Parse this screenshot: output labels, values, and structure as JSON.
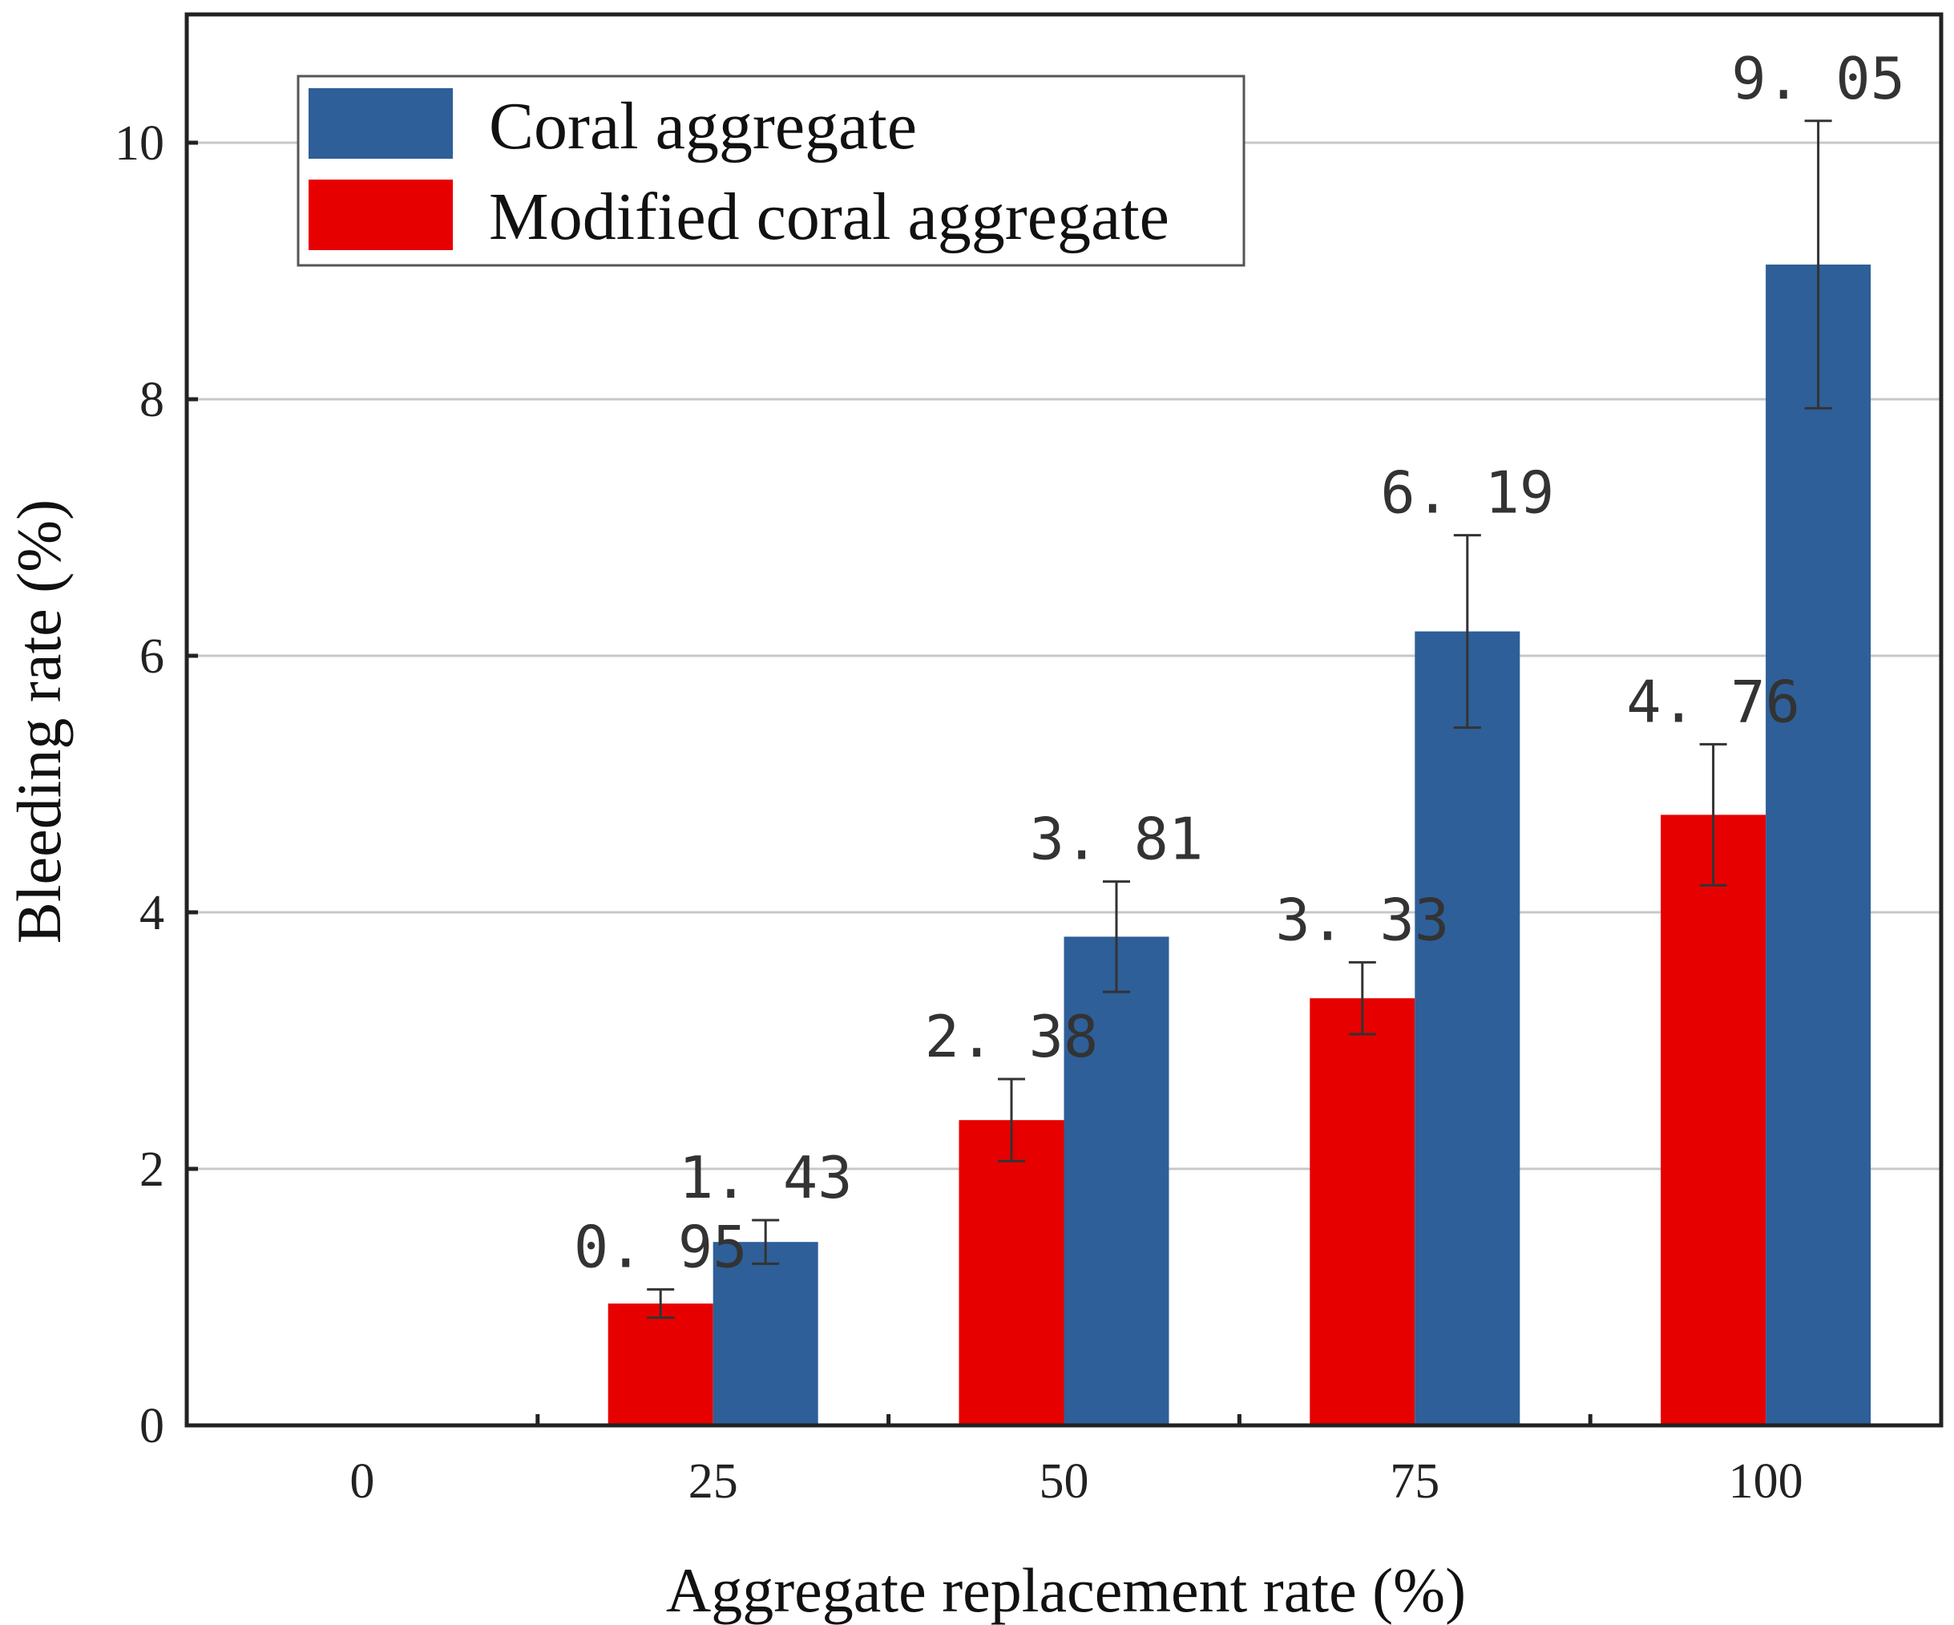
{
  "chart_data": {
    "type": "bar",
    "title": "",
    "xlabel": "Aggregate replacement rate (%)",
    "ylabel": "Bleeding rate (%)",
    "categories": [
      "0",
      "25",
      "50",
      "75",
      "100"
    ],
    "ylim": [
      0,
      11
    ],
    "yticks": [
      0,
      2,
      4,
      6,
      8,
      10
    ],
    "grid": "horizontal",
    "legend_position": "top-left",
    "series": [
      {
        "name": "Modified coral aggregate",
        "color": "#e60000",
        "values": [
          null,
          0.95,
          2.38,
          3.33,
          4.76
        ],
        "errors": [
          null,
          0.11,
          0.32,
          0.28,
          0.55
        ],
        "labels": [
          "",
          "0. 95",
          "2. 38",
          "3. 33",
          "4. 76"
        ]
      },
      {
        "name": "Coral aggregate",
        "color": "#2e5f98",
        "values": [
          null,
          1.43,
          3.81,
          6.19,
          9.05
        ],
        "errors": [
          null,
          0.17,
          0.43,
          0.75,
          1.12
        ],
        "labels": [
          "",
          "1. 43",
          "3. 81",
          "6. 19",
          "9. 05"
        ]
      }
    ],
    "legend_order": [
      1,
      0
    ]
  }
}
